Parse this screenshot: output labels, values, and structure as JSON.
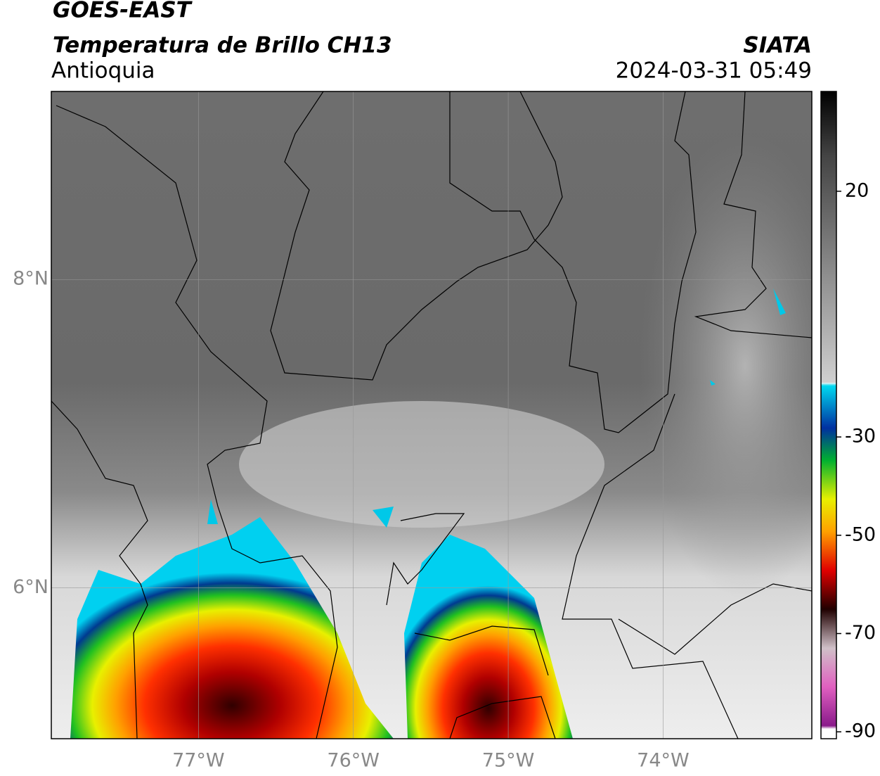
{
  "header": {
    "satellite": "GOES-EAST",
    "product": "Temperatura de Brillo CH13",
    "region": "Antioquia",
    "source": "SIATA",
    "datetime": "2024-03-31 05:49"
  },
  "map": {
    "xlim": [
      -77.95,
      -73.04
    ],
    "ylim": [
      5.02,
      9.22
    ],
    "lat_ticks": [
      {
        "value": 8,
        "label": "8°N"
      },
      {
        "value": 6,
        "label": "6°N"
      }
    ],
    "lon_ticks": [
      {
        "value": -77,
        "label": "77°W"
      },
      {
        "value": -76,
        "label": "76°W"
      },
      {
        "value": -75,
        "label": "75°W"
      },
      {
        "value": -74,
        "label": "74°W"
      }
    ]
  },
  "colorbar": {
    "lim": [
      -91.4,
      40.3
    ],
    "ticks": [
      20,
      -30,
      -50,
      -70,
      -90
    ]
  }
}
